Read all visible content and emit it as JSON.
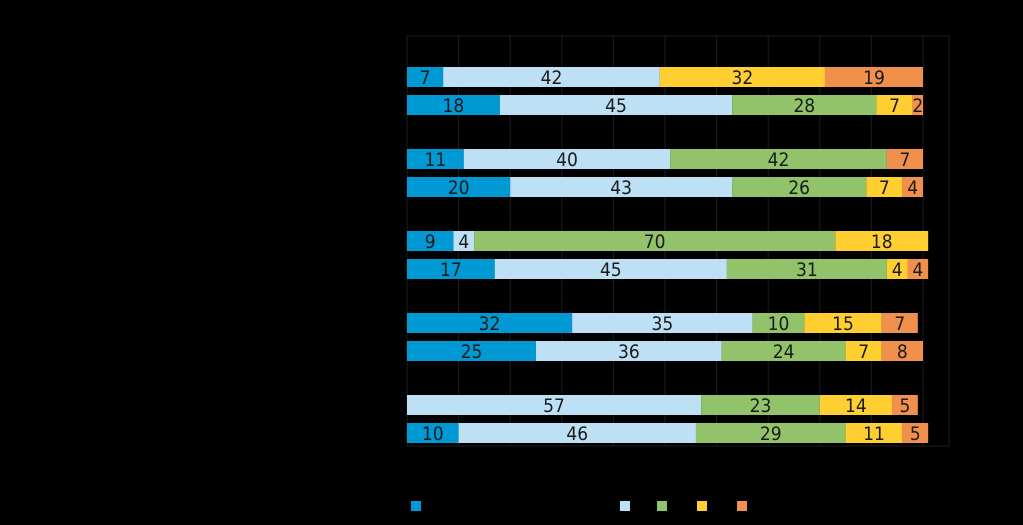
{
  "chart_data": {
    "type": "bar",
    "orientation": "horizontal",
    "stacked": true,
    "normalized": true,
    "xlim": [
      0,
      100
    ],
    "grid": true,
    "legend": "bottom",
    "series_colors": [
      "#0099D4",
      "#BDE0F4",
      "#92C36A",
      "#FFCF32",
      "#F0904C"
    ],
    "rows": [
      {
        "values": [
          7,
          42,
          0,
          32,
          19
        ]
      },
      {
        "values": [
          18,
          45,
          28,
          7,
          2
        ]
      },
      {
        "values": [
          11,
          40,
          42,
          0,
          7
        ]
      },
      {
        "values": [
          20,
          43,
          26,
          7,
          4
        ]
      },
      {
        "values": [
          9,
          4,
          70,
          18,
          0
        ]
      },
      {
        "values": [
          17,
          45,
          31,
          4,
          4
        ]
      },
      {
        "values": [
          32,
          35,
          10,
          15,
          7
        ]
      },
      {
        "values": [
          25,
          36,
          24,
          7,
          8
        ]
      },
      {
        "values": [
          0,
          57,
          23,
          14,
          5
        ]
      },
      {
        "values": [
          10,
          46,
          29,
          11,
          5
        ]
      }
    ]
  }
}
